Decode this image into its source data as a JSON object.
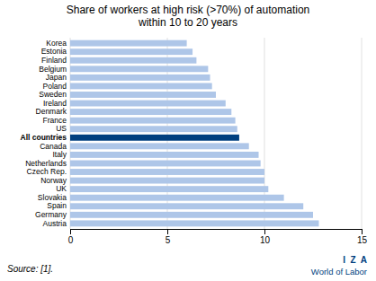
{
  "chart_data": {
    "type": "bar",
    "orientation": "horizontal",
    "title": "Share of workers at high risk (>70%) of automation\nwithin 10 to 20 years",
    "categories": [
      "Korea",
      "Estonia",
      "Finland",
      "Belgium",
      "Japan",
      "Poland",
      "Sweden",
      "Ireland",
      "Denmark",
      "France",
      "US",
      "All countries",
      "Canada",
      "Italy",
      "Netherlands",
      "Czech Rep.",
      "Norway",
      "UK",
      "Slovakia",
      "Spain",
      "Germany",
      "Austria"
    ],
    "values": [
      6.0,
      6.3,
      6.5,
      7.1,
      7.2,
      7.3,
      7.5,
      8.0,
      8.3,
      8.5,
      8.6,
      8.7,
      9.2,
      9.7,
      9.8,
      10.0,
      10.0,
      10.2,
      11.0,
      12.0,
      12.5,
      12.8
    ],
    "colors": [
      "#aec6e8",
      "#aec6e8",
      "#aec6e8",
      "#aec6e8",
      "#aec6e8",
      "#aec6e8",
      "#aec6e8",
      "#aec6e8",
      "#aec6e8",
      "#aec6e8",
      "#aec6e8",
      "#003f7f",
      "#aec6e8",
      "#aec6e8",
      "#aec6e8",
      "#aec6e8",
      "#aec6e8",
      "#aec6e8",
      "#aec6e8",
      "#aec6e8",
      "#aec6e8",
      "#aec6e8"
    ],
    "xlim": [
      0,
      15
    ],
    "xticks": [
      0,
      5,
      10,
      15
    ],
    "grid": true,
    "annotations": [
      "Source: [1].",
      "I  Z  A",
      "World of Labor"
    ]
  }
}
